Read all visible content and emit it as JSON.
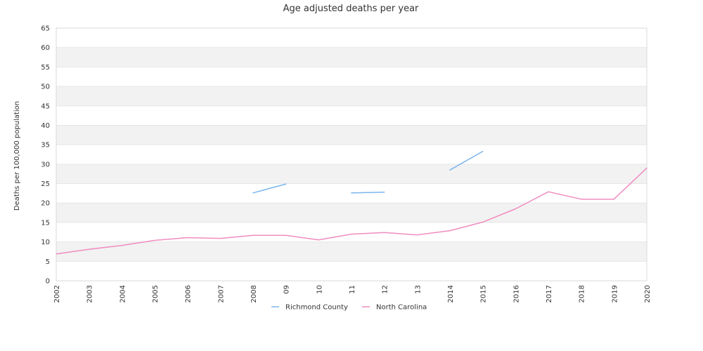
{
  "chart_data": {
    "type": "line",
    "title": "Age adjusted deaths per year",
    "xlabel": "",
    "ylabel": "Deaths per 100,000 population",
    "categories": [
      "2002",
      "2003",
      "2004",
      "2005",
      "2006",
      "2007",
      "2008",
      "09",
      "10",
      "11",
      "12",
      "13",
      "2014",
      "2015",
      "2016",
      "2017",
      "2018",
      "2019",
      "2020"
    ],
    "yticks": [
      "0",
      "5",
      "10",
      "15",
      "20",
      "25",
      "30",
      "35",
      "40",
      "45",
      "50",
      "55",
      "60",
      "65"
    ],
    "ylim": [
      0,
      65
    ],
    "grid": "horizontal alternating bands",
    "legend_position": "bottom",
    "series": [
      {
        "name": "Richmond County",
        "color": "#7cb5ec",
        "values": [
          null,
          null,
          null,
          null,
          null,
          null,
          22.6,
          24.9,
          null,
          22.6,
          22.8,
          null,
          28.5,
          33.3,
          null,
          null,
          null,
          null,
          null
        ]
      },
      {
        "name": "North Carolina",
        "color": "#f08cbf",
        "values": [
          6.9,
          8.1,
          9.1,
          10.4,
          11.1,
          10.9,
          11.7,
          11.7,
          10.5,
          12.0,
          12.4,
          11.8,
          12.9,
          15.1,
          18.5,
          22.9,
          21.0,
          21.0,
          29.0
        ]
      }
    ]
  }
}
